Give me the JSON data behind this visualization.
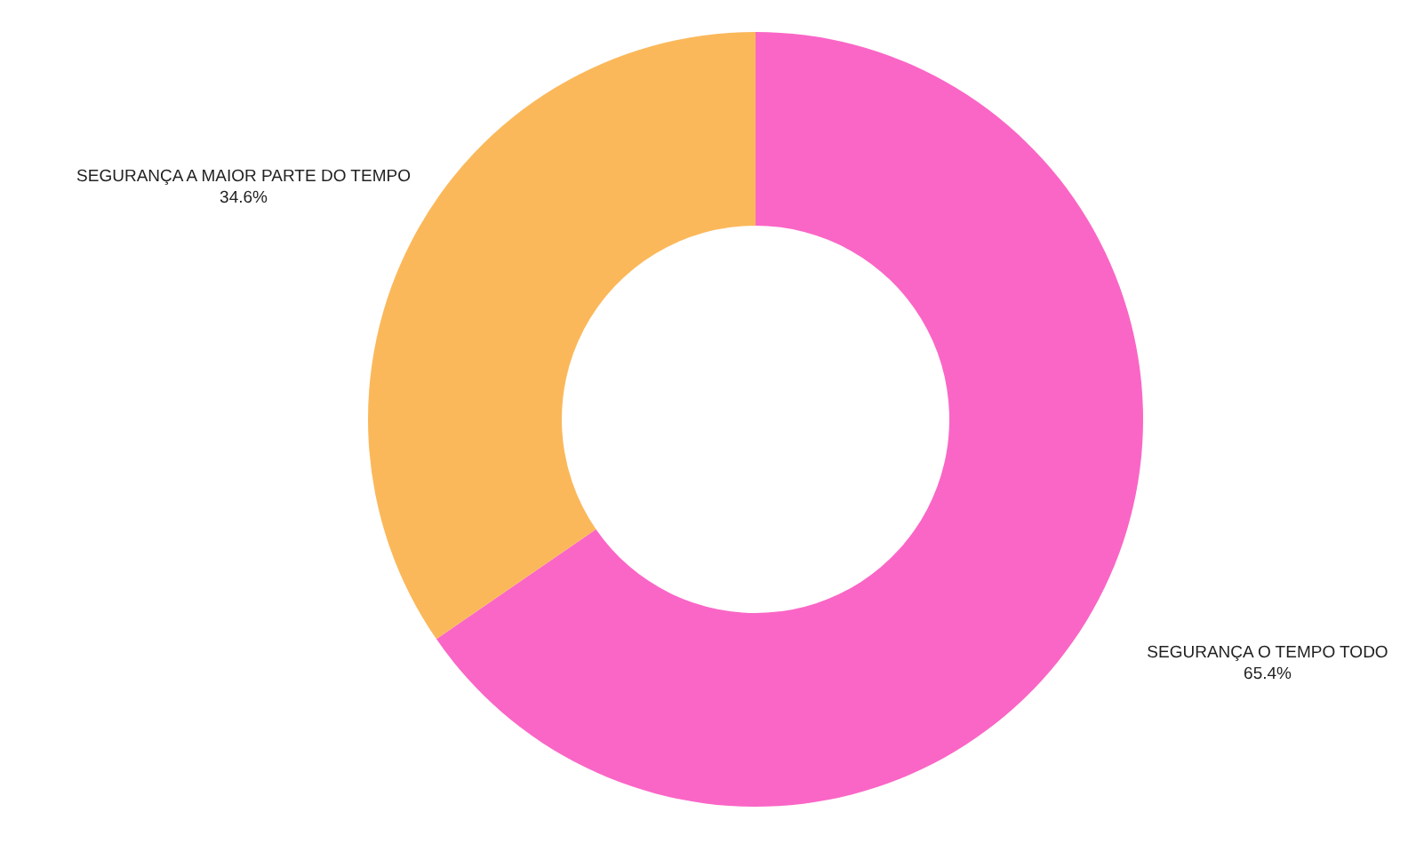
{
  "chart_data": {
    "type": "donut",
    "categories": [
      "SEGURANÇA O TEMPO TODO",
      "SEGURANÇA A MAIOR PARTE DO TEMPO"
    ],
    "values": [
      65.4,
      34.6
    ],
    "colors": [
      "#fa66c6",
      "#fbb85a"
    ],
    "value_labels": [
      "65.4%",
      "34.6%"
    ]
  }
}
